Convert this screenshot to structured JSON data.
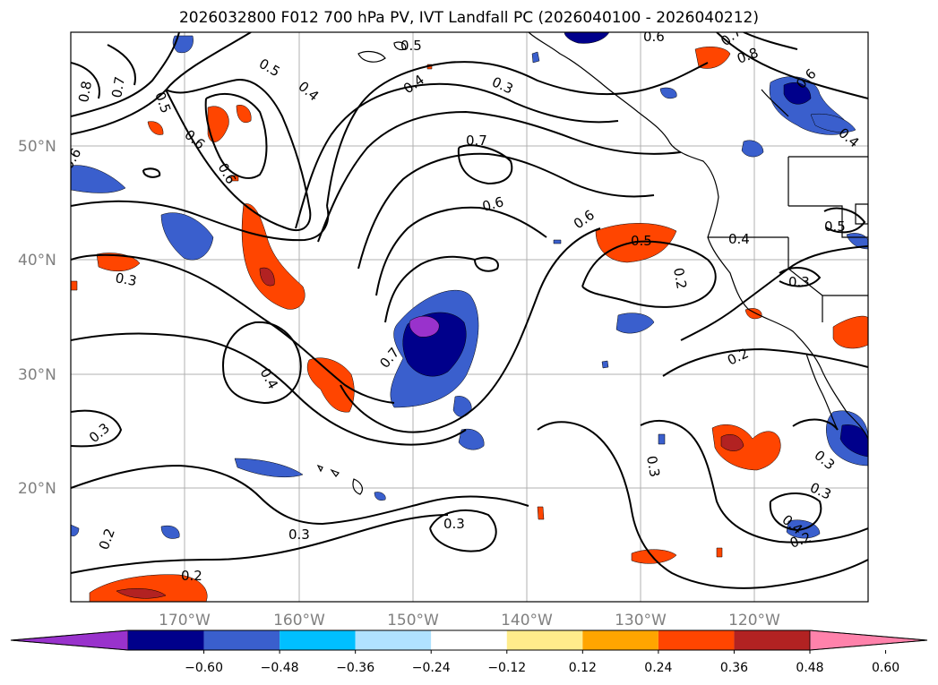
{
  "title": "2026032800 F012 700 hPa PV, IVT Landfall PC (2026040100 - 2026040212)",
  "longitude_labels": [
    "170°W",
    "160°W",
    "150°W",
    "140°W",
    "130°W",
    "120°W"
  ],
  "latitude_labels": [
    "50°N",
    "40°N",
    "30°N",
    "20°N"
  ],
  "colorbar": {
    "tick_labels": [
      "−0.60",
      "−0.48",
      "−0.36",
      "−0.24",
      "−0.12",
      "0.12",
      "0.24",
      "0.36",
      "0.48",
      "0.60"
    ],
    "colors": [
      "#9932cc",
      "#00008b",
      "#3a5fcd",
      "#00bfff",
      "#b0e2ff",
      "#ffffff",
      "#ffec8b",
      "#ffa500",
      "#ff4500",
      "#b22222",
      "#ff82ab"
    ]
  },
  "contour_labels": {
    "c05a": "0.5",
    "c05b": "0.5",
    "c04a": "0.4",
    "c04b": "0.4",
    "c03a": "0.3",
    "c06a": "0.6",
    "c08a": "0.8",
    "c07a": "0.7",
    "c05c": "0.5",
    "c06b": "0.6",
    "c07b": "0.7",
    "c06c": "0.6",
    "c06d": "0.6",
    "c05d": "0.5",
    "c04c": "0.4",
    "c02a": "0.2",
    "c03b": "0.3",
    "c02b": "0.2",
    "c05e": "0.5",
    "c03c": "0.3",
    "c04d": "0.4",
    "c07c": "0.7",
    "c03d": "0.3",
    "c03e": "0.3",
    "c03f": "0.3",
    "c02c": "0.2",
    "c02d": "0.2",
    "c03g": "0.3",
    "c03h": "0.3",
    "c04e": "0.4",
    "c02e": "0.2",
    "c07d": "0.7",
    "c06e": "0.6",
    "c06f": "0.6",
    "c04f": "0.4",
    "c08b": "0.8",
    "c03i": "0.3",
    "c02f": "0.2",
    "c07e": "0.7"
  }
}
